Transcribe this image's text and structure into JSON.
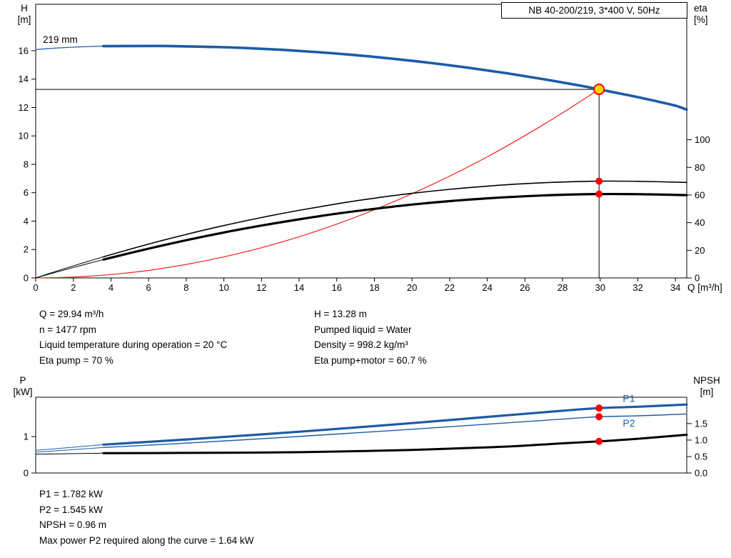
{
  "header": {
    "pump_title": "NB 40-200/219, 3*400 V, 50Hz"
  },
  "axis_titles": {
    "top_left_line1": "H",
    "top_left_line2": "[m]",
    "top_right_line1": "eta",
    "top_right_line2": "[%]",
    "x_axis": "Q [m³/h]",
    "bottom_left_line1": "P",
    "bottom_left_line2": "[kW]",
    "bottom_right_line1": "NPSH",
    "bottom_right_line2": "[m]"
  },
  "impeller_diameter_label": "219 mm",
  "operating_data": {
    "left": [
      "Q = 29.94 m³/h",
      "n = 1477 rpm",
      "Liquid temperature during operation = 20 °C",
      "Eta pump = 70 %"
    ],
    "right": [
      "H = 13.28 m",
      "Pumped liquid = Water",
      "Density = 998.2 kg/m³",
      "Eta pump+motor = 60.7 %"
    ]
  },
  "results": [
    "P1 = 1.782 kW",
    "P2 = 1.545 kW",
    "NPSH = 0.96 m",
    "Max power P2 required along the curve = 1.64 kW"
  ],
  "colors": {
    "curve_blue": "#1d5ba6",
    "curve_red": "#ef2118",
    "marker_red": "#ff0000",
    "marker_yellow": "#ffd800",
    "black": "#000000"
  },
  "chart_data": [
    {
      "id": "qh-eta",
      "type": "line",
      "title": "NB 40-200/219, 3*400 V, 50Hz",
      "xlabel": "Q [m³/h]",
      "ylabel_left": "H [m]",
      "ylabel_right": "eta [%]",
      "xlim": [
        0,
        34.6
      ],
      "ylim_left": [
        0,
        19.27
      ],
      "ylim_right": [
        0,
        198
      ],
      "xticks": [
        0,
        2,
        4,
        6,
        8,
        10,
        12,
        14,
        16,
        18,
        20,
        22,
        24,
        26,
        28,
        30,
        32,
        34
      ],
      "yticks_left": [
        0,
        2,
        4,
        6,
        8,
        10,
        12,
        14,
        16
      ],
      "yticks_right": [
        0,
        20,
        40,
        60,
        80,
        100
      ],
      "duty_point": {
        "Q": 29.94,
        "H": 13.28,
        "eta_pump": 70,
        "eta_pump_motor": 60.7
      },
      "series": [
        {
          "name": "duty-head-line",
          "axis": "left",
          "color": "#000000",
          "width": 1,
          "x": [
            0,
            29.94
          ],
          "y": [
            13.28,
            13.28
          ]
        },
        {
          "name": "duty-flow-line",
          "axis": "left",
          "color": "#000000",
          "width": 1,
          "x": [
            29.94,
            29.94
          ],
          "y": [
            0,
            13.28
          ]
        },
        {
          "name": "system-curve",
          "axis": "left",
          "color": "#ef2118",
          "width": 1.2,
          "x": [
            0,
            2,
            4,
            6,
            8,
            10,
            12,
            14,
            16,
            18,
            20,
            22,
            24,
            26,
            28,
            29.94
          ],
          "y": [
            0,
            0.06,
            0.24,
            0.53,
            0.95,
            1.48,
            2.13,
            2.9,
            3.79,
            4.8,
            5.93,
            7.17,
            8.53,
            10.02,
            11.62,
            13.28
          ]
        },
        {
          "name": "eta-pump-lead",
          "axis": "right",
          "color": "#000000",
          "width": 1,
          "x": [
            0,
            1.2,
            2.4,
            3.6
          ],
          "y": [
            0,
            5.3,
            10.4,
            15.3
          ]
        },
        {
          "name": "eta-pump-motor-lead",
          "axis": "right",
          "color": "#000000",
          "width": 1,
          "x": [
            0,
            1.2,
            2.4,
            3.6
          ],
          "y": [
            0,
            4.6,
            9,
            13.3
          ]
        },
        {
          "name": "eta-pump-curve",
          "axis": "right",
          "color": "#000000",
          "width": 1.6,
          "x": [
            3.6,
            6,
            8,
            10,
            12,
            14,
            16,
            18,
            20,
            22,
            24,
            26,
            28,
            29.94,
            32,
            34.6
          ],
          "y": [
            15.3,
            24.5,
            31.5,
            37.9,
            43.7,
            48.9,
            53.6,
            57.7,
            61.2,
            64.1,
            66.4,
            68.2,
            69.4,
            70,
            69.9,
            69.1
          ]
        },
        {
          "name": "eta-pump-motor-curve",
          "axis": "right",
          "color": "#000000",
          "width": 3.2,
          "x": [
            3.6,
            6,
            8,
            10,
            12,
            14,
            16,
            18,
            20,
            22,
            24,
            26,
            28,
            29.94,
            32,
            34.6
          ],
          "y": [
            13.3,
            21.2,
            27.3,
            32.9,
            37.9,
            42.4,
            46.5,
            50,
            53.1,
            55.6,
            57.6,
            59.1,
            60.2,
            60.7,
            60.6,
            59.9
          ]
        },
        {
          "name": "qh-curve-lead",
          "axis": "left",
          "color": "#1d5ba6",
          "width": 1.2,
          "x": [
            0,
            1,
            2,
            3,
            3.6
          ],
          "y": [
            16.08,
            16.18,
            16.25,
            16.3,
            16.32
          ]
        },
        {
          "name": "qh-curve",
          "axis": "left",
          "color": "#1d5ba6",
          "width": 3.6,
          "x": [
            3.6,
            5,
            7,
            9,
            11,
            13,
            15,
            17,
            19,
            21,
            23,
            25,
            27,
            29,
            29.94,
            31,
            32,
            33,
            34,
            34.6
          ],
          "y": [
            16.32,
            16.33,
            16.33,
            16.28,
            16.2,
            16.07,
            15.9,
            15.69,
            15.43,
            15.14,
            14.8,
            14.42,
            13.99,
            13.53,
            13.28,
            13,
            12.73,
            12.44,
            12.13,
            11.85
          ]
        }
      ],
      "labels": [],
      "markers": [
        {
          "name": "eta-pump-duty-point",
          "axis": "right",
          "x": 29.94,
          "y": 70,
          "r": 5,
          "fill": "#ff0000"
        },
        {
          "name": "eta-pump-motor-duty-point",
          "axis": "right",
          "x": 29.94,
          "y": 60.7,
          "r": 5,
          "fill": "#ff0000"
        },
        {
          "name": "duty-point",
          "axis": "left",
          "x": 29.94,
          "y": 13.28,
          "r": 7,
          "fill": "#ffd800",
          "stroke": "#ff0000",
          "stroke_width": 2
        }
      ]
    },
    {
      "id": "power-npsh",
      "type": "line",
      "title": "",
      "xlabel": "",
      "ylabel_left": "P [kW]",
      "ylabel_right": "NPSH [m]",
      "xlim": [
        0,
        34.6
      ],
      "ylim_left": [
        0,
        2.08
      ],
      "ylim_right": [
        0,
        2.3
      ],
      "xticks": [],
      "yticks_left": [
        0,
        1
      ],
      "yticks_left_labels": [
        "0",
        "1"
      ],
      "yticks_right": [
        0,
        0.5,
        1,
        1.5
      ],
      "yticks_right_labels": [
        "0.0",
        "0.5",
        "1.0",
        "1.5"
      ],
      "duty_point": {
        "Q": 29.94,
        "P1": 1.782,
        "P2": 1.545,
        "NPSH": 0.96
      },
      "series": [
        {
          "name": "p1-curve-lead",
          "axis": "left",
          "color": "#1d5ba6",
          "width": 1,
          "x": [
            0,
            3.6
          ],
          "y": [
            0.62,
            0.78
          ]
        },
        {
          "name": "p2-curve-lead",
          "axis": "left",
          "color": "#1d5ba6",
          "width": 1,
          "x": [
            0,
            3.6
          ],
          "y": [
            0.57,
            0.7
          ]
        },
        {
          "name": "npsh-curve-lead",
          "axis": "right",
          "color": "#000000",
          "width": 1,
          "x": [
            0,
            3.6
          ],
          "y": [
            0.57,
            0.6
          ]
        },
        {
          "name": "npsh-curve",
          "axis": "right",
          "color": "#000000",
          "width": 3,
          "x": [
            3.6,
            8,
            12,
            16,
            20,
            24,
            26,
            28,
            29.94,
            32,
            34.6
          ],
          "y": [
            0.6,
            0.61,
            0.62,
            0.65,
            0.7,
            0.78,
            0.83,
            0.9,
            0.96,
            1.04,
            1.16
          ]
        },
        {
          "name": "p2-curve",
          "axis": "left",
          "color": "#1d5ba6",
          "width": 1.4,
          "x": [
            3.6,
            8,
            12,
            16,
            20,
            24,
            28,
            29.94,
            32,
            34.6
          ],
          "y": [
            0.7,
            0.82,
            0.94,
            1.07,
            1.2,
            1.34,
            1.48,
            1.545,
            1.57,
            1.62
          ]
        },
        {
          "name": "p1-curve",
          "axis": "left",
          "color": "#1d5ba6",
          "width": 3.2,
          "x": [
            3.6,
            8,
            12,
            16,
            20,
            24,
            28,
            29.94,
            32,
            34.6
          ],
          "y": [
            0.78,
            0.92,
            1.06,
            1.21,
            1.37,
            1.54,
            1.71,
            1.782,
            1.82,
            1.88
          ]
        }
      ],
      "labels": [
        {
          "name": "p1-curve-label",
          "text": "P1",
          "axis": "left",
          "x": 31.2,
          "y": 1.95,
          "color": "#1d5ba6"
        },
        {
          "name": "p2-curve-label",
          "text": "P2",
          "axis": "left",
          "x": 31.2,
          "y": 1.28,
          "color": "#1d5ba6"
        }
      ],
      "markers": [
        {
          "name": "p1-duty-point",
          "axis": "left",
          "x": 29.94,
          "y": 1.782,
          "r": 5,
          "fill": "#ff0000"
        },
        {
          "name": "p2-duty-point",
          "axis": "left",
          "x": 29.94,
          "y": 1.545,
          "r": 5,
          "fill": "#ff0000"
        },
        {
          "name": "npsh-duty-point",
          "axis": "right",
          "x": 29.94,
          "y": 0.96,
          "r": 5,
          "fill": "#ff0000"
        }
      ]
    }
  ]
}
